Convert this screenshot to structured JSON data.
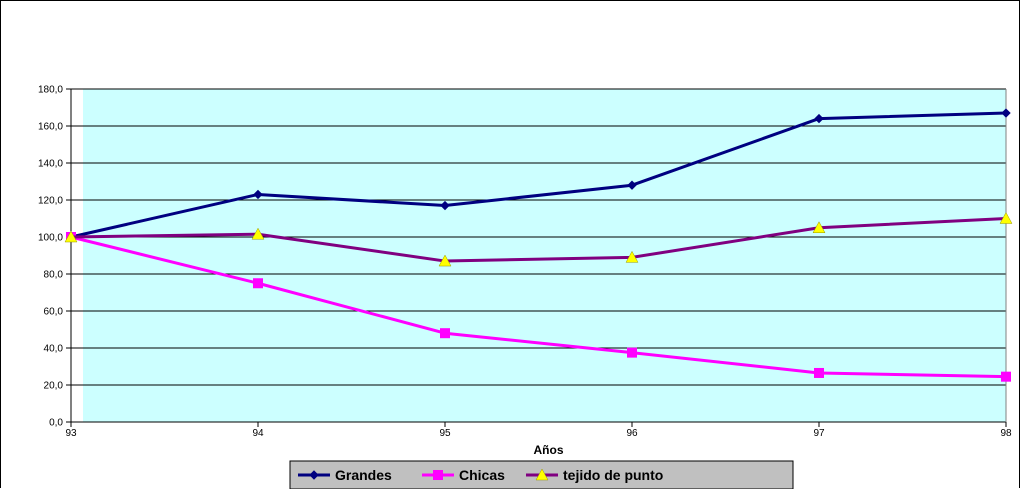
{
  "chart_data": {
    "type": "line",
    "title": "",
    "xlabel": "Años",
    "ylabel": "",
    "categories": [
      "93",
      "94",
      "95",
      "96",
      "97",
      "98"
    ],
    "ylim": [
      0,
      180
    ],
    "yticks": [
      "0,0",
      "20,0",
      "40,0",
      "60,0",
      "80,0",
      "100,0",
      "120,0",
      "140,0",
      "160,0",
      "180,0"
    ],
    "grid": "horizontal",
    "plot_background": "#ccffff",
    "legend_position": "bottom",
    "series": [
      {
        "name": "Grandes",
        "values": [
          100,
          123,
          117,
          128,
          164,
          167
        ],
        "color": "#000080",
        "marker": "diamond"
      },
      {
        "name": "Chicas",
        "values": [
          100,
          75,
          48,
          37.5,
          26.5,
          24.5
        ],
        "color": "#ff00ff",
        "marker": "square"
      },
      {
        "name": "tejido de punto",
        "values": [
          100,
          101.5,
          87,
          89,
          105,
          110
        ],
        "color": "#800080",
        "marker": "triangle",
        "marker_color": "#ffff00"
      }
    ]
  }
}
